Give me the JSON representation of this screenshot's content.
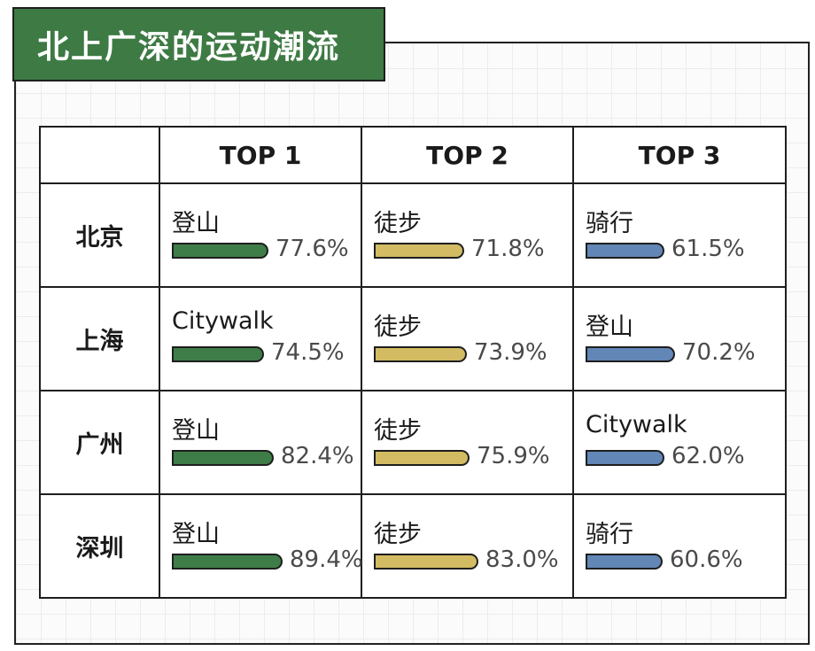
{
  "title": "北上广深的运动潮流",
  "headers": [
    "",
    "TOP 1",
    "TOP 2",
    "TOP 3"
  ],
  "colors": {
    "title_bg": "#3d7a44",
    "top1": "#3e7d48",
    "top2": "#d2bb62",
    "top3": "#6286b6"
  },
  "rows": [
    {
      "city": "北京",
      "cells": [
        {
          "activity": "登山",
          "value": 77.6,
          "label": "77.6%"
        },
        {
          "activity": "徒步",
          "value": 71.8,
          "label": "71.8%"
        },
        {
          "activity": "骑行",
          "value": 61.5,
          "label": "61.5%"
        }
      ]
    },
    {
      "city": "上海",
      "cells": [
        {
          "activity": "Citywalk",
          "value": 74.5,
          "label": "74.5%"
        },
        {
          "activity": "徒步",
          "value": 73.9,
          "label": "73.9%"
        },
        {
          "activity": "登山",
          "value": 70.2,
          "label": "70.2%"
        }
      ]
    },
    {
      "city": "广州",
      "cells": [
        {
          "activity": "登山",
          "value": 82.4,
          "label": "82.4%"
        },
        {
          "activity": "徒步",
          "value": 75.9,
          "label": "75.9%"
        },
        {
          "activity": "Citywalk",
          "value": 62.0,
          "label": "62.0%"
        }
      ]
    },
    {
      "city": "深圳",
      "cells": [
        {
          "activity": "登山",
          "value": 89.4,
          "label": "89.4%"
        },
        {
          "activity": "徒步",
          "value": 83.0,
          "label": "83.0%"
        },
        {
          "activity": "骑行",
          "value": 60.6,
          "label": "60.6%"
        }
      ]
    }
  ],
  "chart_data": {
    "type": "table",
    "title": "北上广深的运动潮流",
    "columns": [
      "TOP 1",
      "TOP 2",
      "TOP 3"
    ],
    "rows": [
      "北京",
      "上海",
      "广州",
      "深圳"
    ],
    "activities": [
      [
        "登山",
        "徒步",
        "骑行"
      ],
      [
        "Citywalk",
        "徒步",
        "登山"
      ],
      [
        "登山",
        "徒步",
        "Citywalk"
      ],
      [
        "登山",
        "徒步",
        "骑行"
      ]
    ],
    "values": [
      [
        77.6,
        71.8,
        61.5
      ],
      [
        74.5,
        73.9,
        70.2
      ],
      [
        82.4,
        75.9,
        62.0
      ],
      [
        89.4,
        83.0,
        60.6
      ]
    ],
    "unit": "%"
  }
}
